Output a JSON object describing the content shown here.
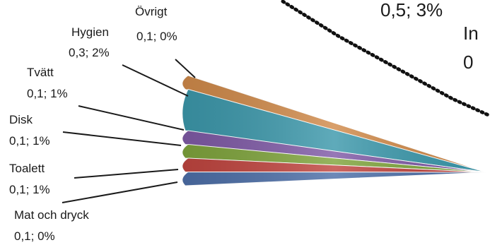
{
  "chart_data": {
    "type": "pie",
    "slices": [
      {
        "name": "Övrigt",
        "label": "Övrigt",
        "value_label": "0,1; 0%",
        "value": 0.1,
        "percent": 0,
        "color": "#d08a4a"
      },
      {
        "name": "Hygien",
        "label": "Hygien",
        "value_label": "0,3; 2%",
        "value": 0.3,
        "percent": 2,
        "color": "#3c98ab"
      },
      {
        "name": "Tvätt",
        "label": "Tvätt",
        "value_label": "0,1; 1%",
        "value": 0.1,
        "percent": 1,
        "color": "#7f5aa6"
      },
      {
        "name": "Disk",
        "label": "Disk",
        "value_label": "0,1; 1%",
        "value": 0.1,
        "percent": 1,
        "color": "#7fa43c"
      },
      {
        "name": "Toalett",
        "label": "Toalett",
        "value_label": "0,1; 1%",
        "value": 0.1,
        "percent": 1,
        "color": "#c0453f"
      },
      {
        "name": "Mat och dryck",
        "label": "Mat och dryck",
        "value_label": "0,1; 0%",
        "value": 0.1,
        "percent": 0,
        "color": "#4d6fa8"
      }
    ],
    "partial_texts": {
      "top_fragment": "0,5; 3%",
      "right_fragment_1": "In",
      "right_fragment_2": "0"
    }
  }
}
